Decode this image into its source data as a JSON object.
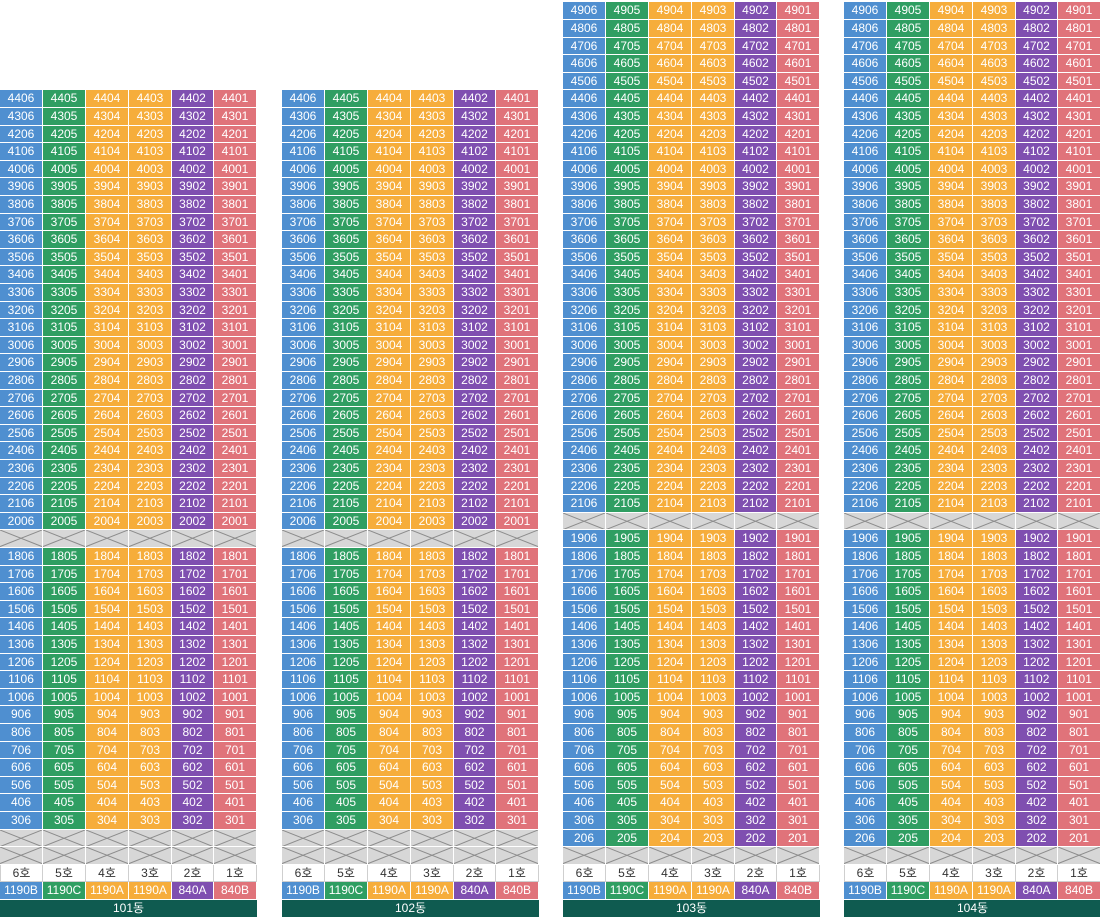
{
  "colors": {
    "col6": "#4f8fd0",
    "col5": "#2f9e62",
    "col4": "#f6ad3b",
    "col3": "#f6ad3b",
    "col2": "#7f4fb0",
    "col1": "#e0737a",
    "piloti": "#d7d7d7",
    "footer": "#0f5b50"
  },
  "unit_labels": [
    "6호",
    "5호",
    "4호",
    "3호",
    "2호",
    "1호"
  ],
  "unit_types": [
    "119OB",
    "119OC",
    "119OA",
    "119OA",
    "84OA",
    "84OB"
  ],
  "unit_types_display": [
    "1190B",
    "1190C",
    "1190A",
    "1190A",
    "840A",
    "840B"
  ],
  "buildings": [
    {
      "name": "101동",
      "top_floor": 44,
      "upper_floors": [
        44,
        20
      ],
      "piloti_after": 20,
      "lower_floors": [
        18,
        3
      ],
      "piloti_rows_bottom": 2
    },
    {
      "name": "102동",
      "top_floor": 44,
      "upper_floors": [
        44,
        20
      ],
      "piloti_after": 20,
      "lower_floors": [
        18,
        3
      ],
      "piloti_rows_bottom": 2
    },
    {
      "name": "103동",
      "top_floor": 49,
      "upper_floors": [
        49,
        21
      ],
      "piloti_after": 21,
      "lower_floors": [
        19,
        2
      ],
      "piloti_rows_bottom": 1
    },
    {
      "name": "104동",
      "top_floor": 49,
      "upper_floors": [
        49,
        21
      ],
      "piloti_after": 21,
      "lower_floors": [
        19,
        2
      ],
      "piloti_rows_bottom": 1
    }
  ]
}
